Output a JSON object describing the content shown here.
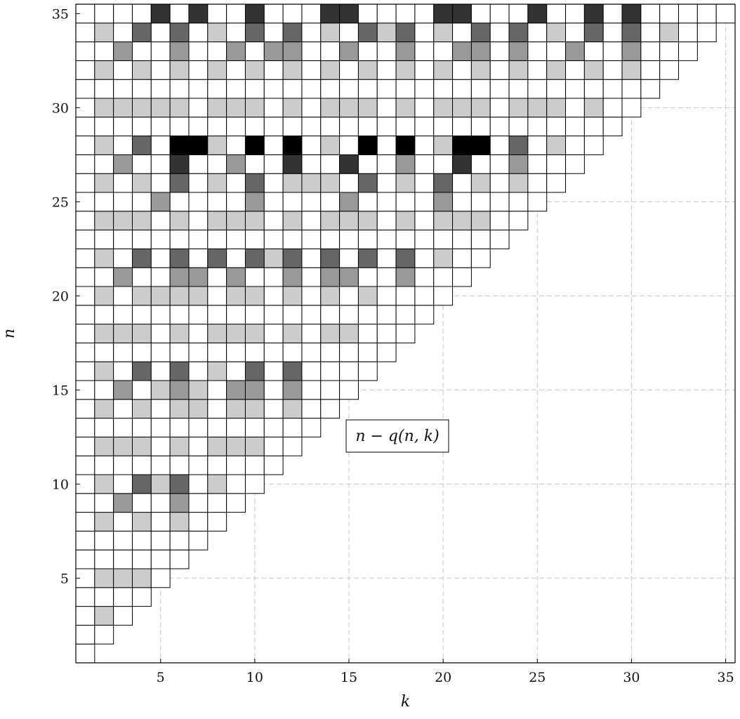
{
  "chart_data": {
    "type": "heatmap",
    "title": "",
    "xlabel": "k",
    "ylabel": "n",
    "annotation": "n − q(n, k)",
    "xlim": [
      0.5,
      35.5
    ],
    "ylim": [
      0.5,
      35.5
    ],
    "xticks": [
      5,
      10,
      15,
      20,
      25,
      30,
      35
    ],
    "yticks": [
      5,
      10,
      15,
      20,
      25,
      30,
      35
    ],
    "grid": "dashed at ticks",
    "color_scale": [
      "#ffffff",
      "#cccccc",
      "#999999",
      "#666666",
      "#333333",
      "#000000"
    ],
    "value_levels": [
      0,
      1,
      2,
      3,
      4,
      5
    ],
    "cell_rule": "cell (k, n) present for 1 <= k <= n; value = shade level",
    "rows": {
      "1": [
        0
      ],
      "2": [
        0,
        0
      ],
      "3": [
        0,
        1,
        0
      ],
      "4": [
        0,
        0,
        0,
        0
      ],
      "5": [
        0,
        1,
        1,
        1,
        0
      ],
      "6": [
        0,
        0,
        0,
        0,
        0,
        0
      ],
      "7": [
        0,
        0,
        0,
        0,
        0,
        0,
        0
      ],
      "8": [
        0,
        1,
        0,
        1,
        0,
        1,
        0,
        0
      ],
      "9": [
        0,
        0,
        2,
        0,
        0,
        2,
        0,
        0,
        0
      ],
      "10": [
        0,
        1,
        0,
        3,
        1,
        3,
        0,
        1,
        0,
        0
      ],
      "11": [
        0,
        0,
        0,
        0,
        0,
        0,
        0,
        0,
        0,
        0,
        0
      ],
      "12": [
        0,
        1,
        1,
        1,
        0,
        1,
        0,
        1,
        1,
        1,
        0,
        0
      ],
      "13": [
        0,
        0,
        0,
        0,
        0,
        0,
        0,
        0,
        0,
        0,
        0,
        0,
        0
      ],
      "14": [
        0,
        1,
        0,
        1,
        0,
        1,
        1,
        0,
        1,
        1,
        0,
        1,
        0,
        0
      ],
      "15": [
        0,
        0,
        2,
        0,
        1,
        2,
        1,
        0,
        2,
        2,
        0,
        2,
        0,
        0,
        0
      ],
      "16": [
        0,
        1,
        0,
        3,
        0,
        3,
        0,
        1,
        0,
        3,
        0,
        3,
        0,
        0,
        0,
        0
      ],
      "17": [
        0,
        0,
        0,
        0,
        0,
        0,
        0,
        0,
        0,
        0,
        0,
        0,
        0,
        0,
        0,
        0,
        0
      ],
      "18": [
        0,
        1,
        1,
        1,
        0,
        1,
        0,
        1,
        1,
        1,
        0,
        1,
        0,
        1,
        1,
        0,
        0,
        0
      ],
      "19": [
        0,
        0,
        0,
        0,
        0,
        0,
        0,
        0,
        0,
        0,
        0,
        0,
        0,
        0,
        0,
        0,
        0,
        0,
        0
      ],
      "20": [
        0,
        1,
        0,
        1,
        1,
        1,
        1,
        0,
        1,
        1,
        0,
        1,
        0,
        1,
        0,
        1,
        0,
        0,
        0,
        0
      ],
      "21": [
        0,
        0,
        2,
        0,
        0,
        2,
        2,
        0,
        2,
        0,
        0,
        2,
        0,
        2,
        2,
        0,
        0,
        2,
        0,
        0,
        0
      ],
      "22": [
        0,
        1,
        0,
        3,
        0,
        3,
        0,
        3,
        0,
        3,
        1,
        3,
        0,
        3,
        0,
        3,
        0,
        3,
        0,
        1,
        0,
        0
      ],
      "23": [
        0,
        0,
        0,
        0,
        0,
        0,
        0,
        0,
        0,
        0,
        0,
        0,
        0,
        0,
        0,
        0,
        0,
        0,
        0,
        0,
        0,
        0,
        0
      ],
      "24": [
        0,
        1,
        1,
        1,
        0,
        1,
        0,
        1,
        1,
        1,
        0,
        1,
        0,
        1,
        1,
        1,
        0,
        1,
        0,
        1,
        1,
        1,
        0,
        0
      ],
      "25": [
        0,
        0,
        0,
        0,
        2,
        0,
        0,
        0,
        0,
        2,
        0,
        0,
        0,
        0,
        2,
        0,
        0,
        0,
        0,
        2,
        0,
        0,
        0,
        0,
        0
      ],
      "26": [
        0,
        1,
        0,
        1,
        0,
        3,
        0,
        1,
        0,
        3,
        0,
        1,
        1,
        1,
        0,
        3,
        0,
        1,
        0,
        3,
        0,
        1,
        0,
        1,
        0,
        0
      ],
      "27": [
        0,
        0,
        2,
        0,
        0,
        4,
        0,
        0,
        2,
        0,
        0,
        4,
        0,
        0,
        4,
        0,
        0,
        2,
        0,
        0,
        4,
        0,
        0,
        2,
        0,
        0,
        0
      ],
      "28": [
        0,
        1,
        0,
        3,
        0,
        5,
        5,
        1,
        0,
        5,
        0,
        5,
        0,
        1,
        0,
        5,
        0,
        5,
        0,
        1,
        5,
        5,
        0,
        3,
        0,
        1,
        0,
        0
      ],
      "29": [
        0,
        0,
        0,
        0,
        0,
        0,
        0,
        0,
        0,
        0,
        0,
        0,
        0,
        0,
        0,
        0,
        0,
        0,
        0,
        0,
        0,
        0,
        0,
        0,
        0,
        0,
        0,
        0,
        0
      ],
      "30": [
        0,
        1,
        1,
        1,
        1,
        1,
        0,
        1,
        1,
        1,
        0,
        1,
        0,
        1,
        1,
        1,
        0,
        1,
        0,
        1,
        1,
        1,
        0,
        1,
        1,
        1,
        0,
        1,
        0,
        0
      ],
      "31": [
        0,
        0,
        0,
        0,
        0,
        0,
        0,
        0,
        0,
        0,
        0,
        0,
        0,
        0,
        0,
        0,
        0,
        0,
        0,
        0,
        0,
        0,
        0,
        0,
        0,
        0,
        0,
        0,
        0,
        0,
        0
      ],
      "32": [
        0,
        1,
        0,
        1,
        0,
        1,
        0,
        1,
        0,
        1,
        0,
        1,
        0,
        1,
        0,
        1,
        0,
        1,
        0,
        1,
        0,
        1,
        0,
        1,
        0,
        1,
        0,
        1,
        0,
        1,
        0,
        0
      ],
      "33": [
        0,
        0,
        2,
        0,
        0,
        2,
        0,
        0,
        2,
        0,
        2,
        2,
        0,
        0,
        2,
        0,
        0,
        2,
        0,
        0,
        2,
        2,
        0,
        2,
        0,
        0,
        2,
        0,
        0,
        2,
        0,
        0,
        0
      ],
      "34": [
        0,
        1,
        0,
        3,
        0,
        3,
        0,
        1,
        0,
        3,
        0,
        3,
        0,
        1,
        0,
        3,
        1,
        3,
        0,
        1,
        0,
        3,
        0,
        3,
        0,
        1,
        0,
        3,
        0,
        3,
        0,
        1,
        0,
        0
      ],
      "35": [
        0,
        0,
        0,
        0,
        4,
        0,
        4,
        0,
        0,
        4,
        0,
        0,
        0,
        4,
        4,
        0,
        0,
        0,
        0,
        4,
        4,
        0,
        0,
        0,
        4,
        0,
        0,
        4,
        0,
        4,
        0,
        0,
        0,
        0,
        0
      ]
    }
  }
}
